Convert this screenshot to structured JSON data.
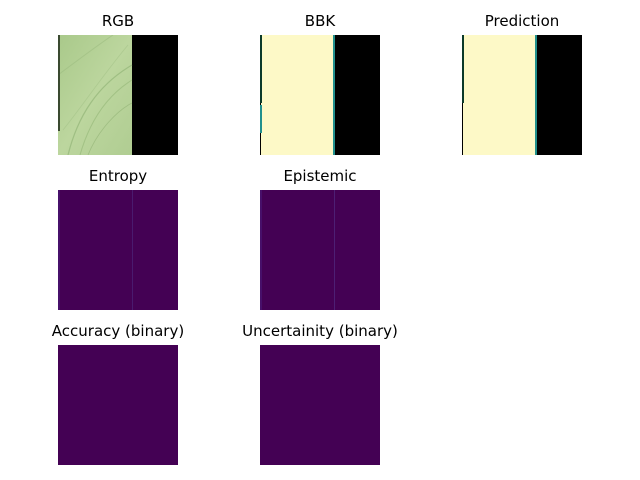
{
  "colors": {
    "viridis_low": "#440154",
    "viridis_high": "#fdf9c7",
    "viridis_mid": "#21908d",
    "background": "#000000",
    "field_green": "#b4cf95"
  },
  "panels": {
    "rgb": {
      "title": "RGB"
    },
    "bbk": {
      "title": "BBK"
    },
    "prediction": {
      "title": "Prediction"
    },
    "entropy": {
      "title": "Entropy"
    },
    "epistemic": {
      "title": "Epistemic"
    },
    "accuracy": {
      "title": "Accuracy (binary)"
    },
    "uncertainty": {
      "title": "Uncertainity (binary)"
    }
  }
}
